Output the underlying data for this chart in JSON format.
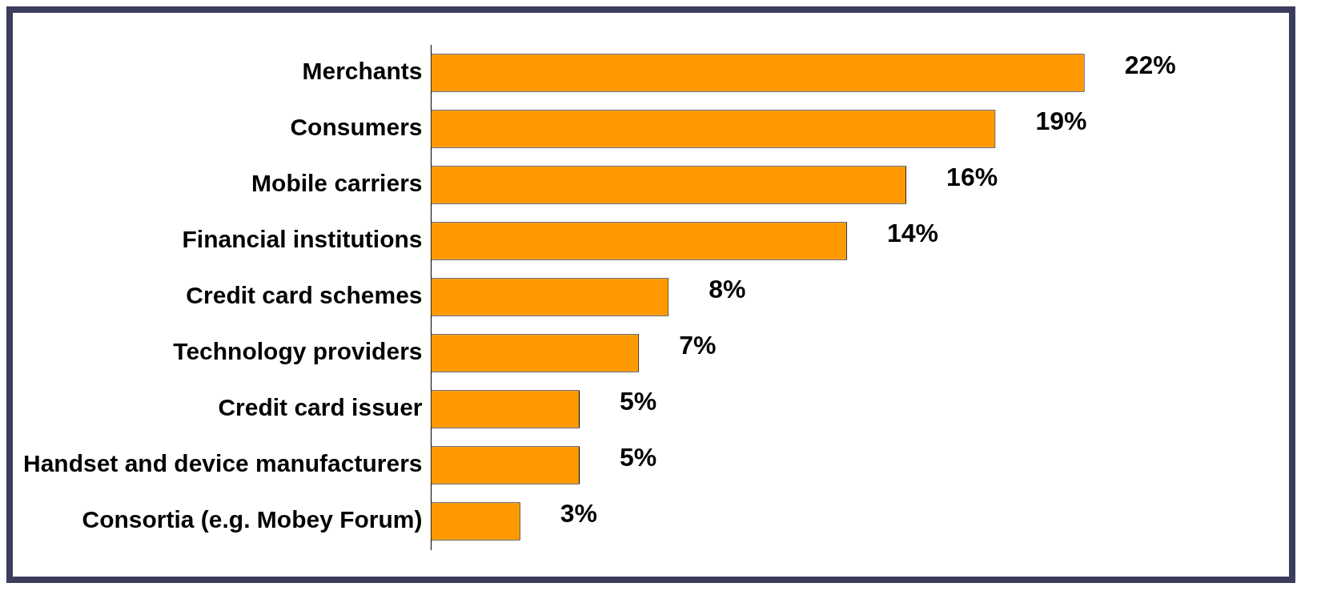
{
  "chart_data": {
    "type": "bar",
    "orientation": "horizontal",
    "categories": [
      "Merchants",
      "Consumers",
      "Mobile carriers",
      "Financial institutions",
      "Credit card schemes",
      "Technology providers",
      "Credit card issuer",
      "Handset and device manufacturers",
      "Consortia (e.g. Mobey Forum)"
    ],
    "values": [
      22,
      19,
      16,
      14,
      8,
      7,
      5,
      5,
      3
    ],
    "value_labels": [
      "22%",
      "19%",
      "16%",
      "14%",
      "8%",
      "7%",
      "5%",
      "5%",
      "3%"
    ],
    "color": "#ff9900",
    "grid": false,
    "legend": false
  }
}
